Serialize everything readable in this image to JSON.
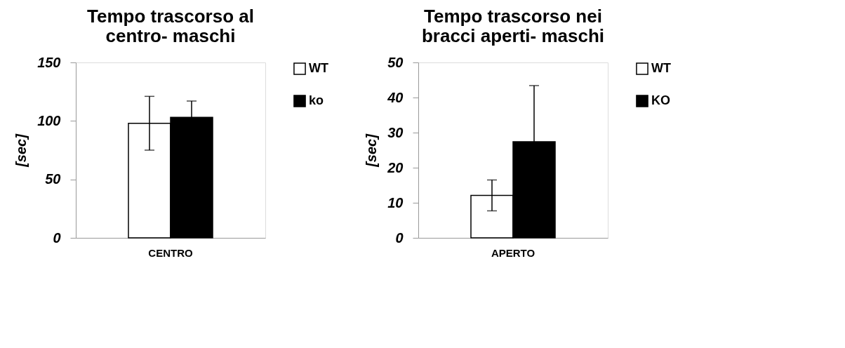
{
  "chart_data": [
    {
      "type": "bar",
      "title": "Tempo trascorso al centro- maschi",
      "ylabel": "[sec]",
      "categories": [
        "CENTRO"
      ],
      "series": [
        {
          "name": "WT",
          "color": "#ffffff",
          "values": [
            98
          ],
          "errors": [
            23
          ]
        },
        {
          "name": "ko",
          "color": "#000000",
          "values": [
            103
          ],
          "errors": [
            [
              103,
              117
            ]
          ]
        }
      ],
      "ylim": [
        0,
        150
      ],
      "yticks": [
        0,
        50,
        100,
        150
      ],
      "grid": false,
      "legend": "right"
    },
    {
      "type": "bar",
      "title": "Tempo trascorso nei bracci aperti- maschi",
      "ylabel": "[sec]",
      "categories": [
        "APERTO"
      ],
      "series": [
        {
          "name": "WT",
          "color": "#ffffff",
          "values": [
            12.1
          ],
          "errors": [
            4.4
          ]
        },
        {
          "name": "KO",
          "color": "#000000",
          "values": [
            27.4
          ],
          "errors": [
            [
              27.4,
              43.4
            ]
          ]
        }
      ],
      "ylim": [
        0,
        50
      ],
      "yticks": [
        0,
        10,
        20,
        30,
        40,
        50
      ],
      "grid": false,
      "legend": "right"
    }
  ]
}
